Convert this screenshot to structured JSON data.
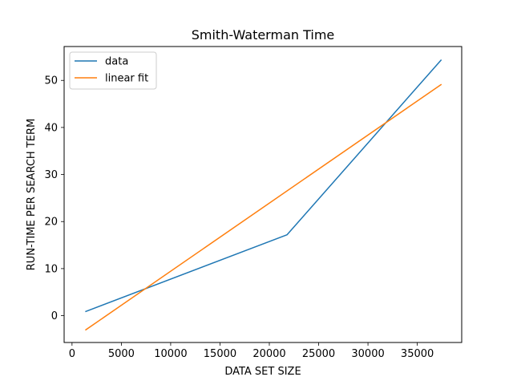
{
  "chart_data": {
    "type": "line",
    "title": "Smith-Waterman Time",
    "xlabel": "DATA SET SIZE",
    "ylabel": "RUN-TIME PER SEARCH TERM",
    "xlim": [
      -800,
      39500
    ],
    "ylim": [
      -5.7,
      57.2
    ],
    "x_ticks": [
      0,
      5000,
      10000,
      15000,
      20000,
      25000,
      30000,
      35000
    ],
    "y_ticks": [
      0,
      10,
      20,
      30,
      40,
      50
    ],
    "grid": false,
    "legend_position": "top-left",
    "series": [
      {
        "name": "data",
        "color": "#1f77b4",
        "x": [
          1400,
          21800,
          37400
        ],
        "y": [
          0.9,
          17.2,
          54.3
        ]
      },
      {
        "name": "linear fit",
        "color": "#ff7f0e",
        "x": [
          1400,
          37400
        ],
        "y": [
          -3.0,
          49.1
        ]
      }
    ]
  }
}
